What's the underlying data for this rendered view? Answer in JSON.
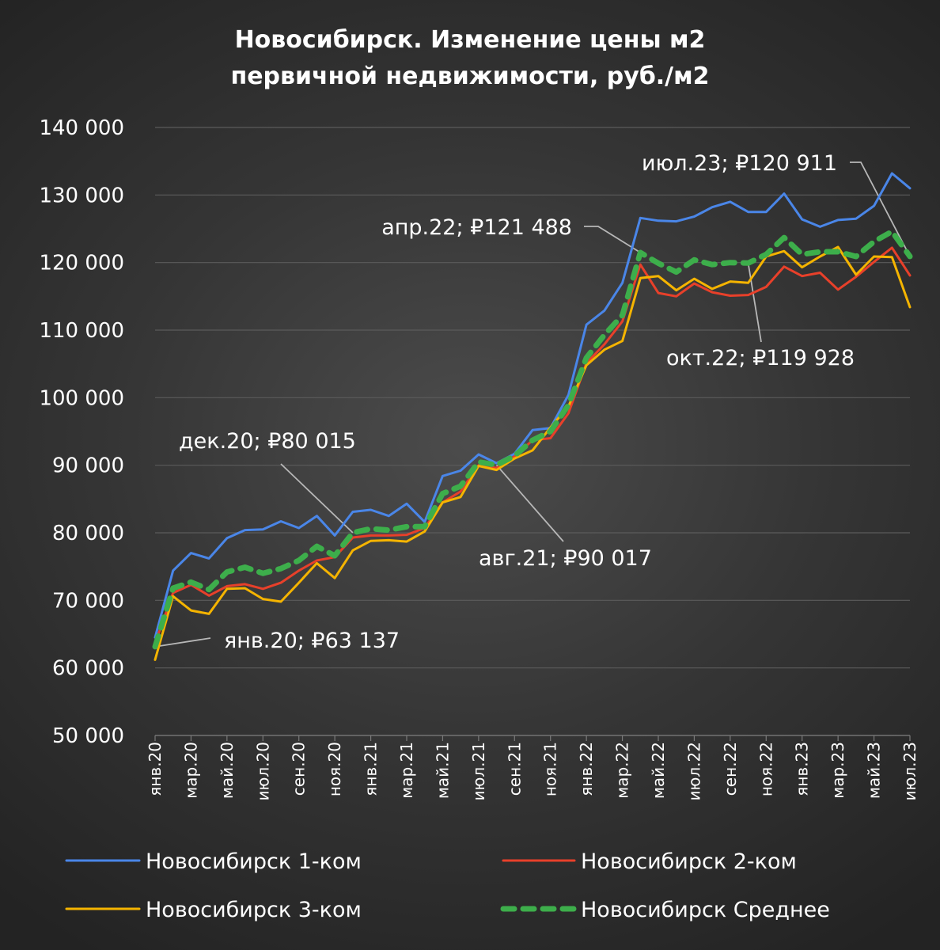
{
  "chart_data": {
    "type": "line",
    "title_lines": [
      "Новосибирск. Изменение цены м2",
      "первичной недвижимости, руб./м2"
    ],
    "ylim": [
      50000,
      140000
    ],
    "yticks": [
      {
        "value": 50000,
        "label": "50 000"
      },
      {
        "value": 60000,
        "label": "60 000"
      },
      {
        "value": 70000,
        "label": "70 000"
      },
      {
        "value": 80000,
        "label": "80 000"
      },
      {
        "value": 90000,
        "label": "90 000"
      },
      {
        "value": 100000,
        "label": "100 000"
      },
      {
        "value": 110000,
        "label": "110 000"
      },
      {
        "value": 120000,
        "label": "120 000"
      },
      {
        "value": 130000,
        "label": "130 000"
      },
      {
        "value": 140000,
        "label": "140 000"
      }
    ],
    "grid": true,
    "legend_position": "bottom",
    "categories": [
      "янв.20",
      "фев.20",
      "мар.20",
      "апр.20",
      "май.20",
      "июн.20",
      "июл.20",
      "авг.20",
      "сен.20",
      "окт.20",
      "ноя.20",
      "дек.20",
      "янв.21",
      "фев.21",
      "мар.21",
      "апр.21",
      "май.21",
      "июн.21",
      "июл.21",
      "авг.21",
      "сен.21",
      "окт.21",
      "ноя.21",
      "дек.21",
      "янв.22",
      "фев.22",
      "мар.22",
      "апр.22",
      "май.22",
      "июн.22",
      "июл.22",
      "авг.22",
      "сен.22",
      "окт.22",
      "ноя.22",
      "дек.22",
      "янв.23",
      "фев.23",
      "мар.23",
      "апр.23",
      "май.23",
      "июн.23",
      "июл.23"
    ],
    "category_tick_labels": [
      "янв.20",
      "мар.20",
      "май.20",
      "июл.20",
      "сен.20",
      "ноя.20",
      "янв.21",
      "мар.21",
      "май.21",
      "июл.21",
      "сен.21",
      "ноя.21",
      "янв.22",
      "мар.22",
      "май.22",
      "июл.22",
      "сен.22",
      "ноя.22",
      "янв.23",
      "мар.23",
      "май.23",
      "июл.23"
    ],
    "series": [
      {
        "name": "Новосибирск 1-ком",
        "color": "#4a86e8",
        "style": "solid",
        "values": [
          64500,
          74400,
          77000,
          76200,
          79200,
          80400,
          80500,
          81700,
          80700,
          82500,
          79600,
          83100,
          83400,
          82500,
          84300,
          81600,
          88400,
          89200,
          91600,
          90300,
          91700,
          95200,
          95500,
          100400,
          110800,
          112900,
          117000,
          126600,
          126200,
          126100,
          126800,
          128200,
          129000,
          127500,
          127500,
          130200,
          126400,
          125300,
          126300,
          126500,
          128400,
          133200,
          131000
        ]
      },
      {
        "name": "Новосибирск 2-ком",
        "color": "#e8402a",
        "style": "solid",
        "values": [
          63600,
          71100,
          72300,
          70700,
          72100,
          72400,
          71700,
          72600,
          74400,
          75900,
          76400,
          79300,
          79600,
          79600,
          79700,
          80700,
          84500,
          86100,
          90000,
          89600,
          91300,
          93700,
          94000,
          97700,
          105100,
          107900,
          111300,
          119700,
          115500,
          115000,
          116900,
          115600,
          115100,
          115200,
          116400,
          119400,
          118000,
          118500,
          116000,
          117900,
          120100,
          122200,
          118100
        ]
      },
      {
        "name": "Новосибирск 3-ком",
        "color": "#f5b400",
        "style": "solid",
        "values": [
          61200,
          70600,
          68500,
          68000,
          71700,
          71800,
          70200,
          69800,
          72600,
          75500,
          73300,
          77400,
          78800,
          78900,
          78700,
          80200,
          84500,
          85300,
          89900,
          89300,
          91000,
          92200,
          95600,
          98700,
          104800,
          107100,
          108400,
          117700,
          118000,
          115900,
          117600,
          116100,
          117200,
          117000,
          120900,
          121700,
          119300,
          120900,
          122300,
          118200,
          120900,
          120800,
          113400
        ]
      },
      {
        "name": "Новосибирск Среднее",
        "color": "#3dae4b",
        "style": "dashed",
        "values": [
          63137,
          71800,
          72700,
          71600,
          74200,
          74900,
          74000,
          74700,
          75900,
          78000,
          76600,
          80015,
          80600,
          80400,
          80900,
          80900,
          85800,
          86900,
          90500,
          90017,
          91400,
          93700,
          95000,
          98900,
          105900,
          109300,
          112200,
          121488,
          119900,
          118600,
          120400,
          119700,
          120000,
          119928,
          121200,
          123700,
          121200,
          121600,
          121600,
          120900,
          123100,
          124600,
          120911
        ]
      }
    ],
    "annotations": [
      {
        "label": "янв.20;  ₽63 137",
        "series": "Новосибирск Среднее",
        "category": "янв.20",
        "value": 63137
      },
      {
        "label": "дек.20;  ₽80 015",
        "series": "Новосибирск Среднее",
        "category": "дек.20",
        "value": 80015
      },
      {
        "label": "авг.21;  ₽90 017",
        "series": "Новосибирск Среднее",
        "category": "авг.21",
        "value": 90017
      },
      {
        "label": "апр.22;  ₽121 488",
        "series": "Новосибирск Среднее",
        "category": "апр.22",
        "value": 121488
      },
      {
        "label": "окт.22;  ₽119 928",
        "series": "Новосибирск Среднее",
        "category": "окт.22",
        "value": 119928
      },
      {
        "label": "июл.23;  ₽120 911",
        "series": "Новосибирск Среднее",
        "category": "июл.23",
        "value": 120911
      }
    ]
  }
}
